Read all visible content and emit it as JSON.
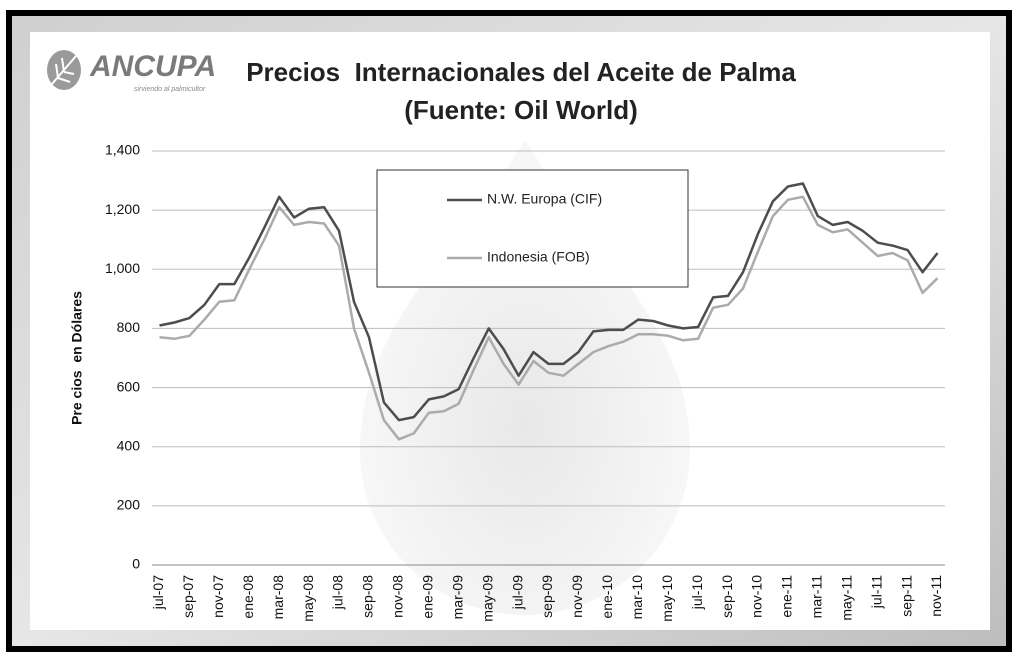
{
  "chart_data": {
    "type": "line",
    "brand": "ANCUPA",
    "brand_tagline": "sirviendo al palmicultor",
    "title": "Precios  Internacionales del Aceite de Palma",
    "subtitle": "(Fuente: Oil World)",
    "y_label": "Pre cios  en Dólares",
    "categories": [
      "jul-07",
      null,
      "sep-07",
      null,
      "nov-07",
      null,
      "ene-08",
      null,
      "mar-08",
      null,
      "may-08",
      null,
      "jul-08",
      null,
      "sep-08",
      null,
      "nov-08",
      null,
      "ene-09",
      null,
      "mar-09",
      null,
      "may-09",
      null,
      "jul-09",
      null,
      "sep-09",
      null,
      "nov-09",
      null,
      "ene-10",
      null,
      "mar-10",
      null,
      "may-10",
      null,
      "jul-10",
      null,
      "sep-10",
      null,
      "nov-10",
      null,
      "ene-11",
      null,
      "mar-11",
      null,
      "may-11",
      null,
      "jul-11",
      null,
      "sep-11",
      null,
      "nov-11"
    ],
    "series": [
      {
        "name": "N.W. Europa (CIF)",
        "color": "#4d4d4d",
        "values": [
          810,
          820,
          835,
          880,
          950,
          950,
          1040,
          1140,
          1245,
          1175,
          1205,
          1210,
          1130,
          890,
          770,
          550,
          490,
          500,
          560,
          570,
          595,
          700,
          800,
          730,
          640,
          720,
          680,
          680,
          720,
          790,
          795,
          795,
          830,
          825,
          810,
          800,
          805,
          905,
          910,
          990,
          1120,
          1230,
          1280,
          1290,
          1180,
          1150,
          1160,
          1130,
          1090,
          1080,
          1065,
          990,
          1055
        ]
      },
      {
        "name": "Indonesia (FOB)",
        "color": "#ababab",
        "values": [
          770,
          765,
          775,
          830,
          890,
          895,
          1000,
          1100,
          1210,
          1150,
          1160,
          1155,
          1080,
          800,
          650,
          490,
          425,
          445,
          515,
          520,
          545,
          660,
          770,
          680,
          610,
          690,
          650,
          640,
          680,
          720,
          740,
          755,
          780,
          780,
          775,
          760,
          765,
          870,
          880,
          935,
          1060,
          1180,
          1235,
          1245,
          1150,
          1125,
          1135,
          1090,
          1045,
          1055,
          1030,
          920,
          970
        ]
      }
    ],
    "ylim": [
      0,
      1400
    ],
    "yticks": [
      0,
      200,
      400,
      600,
      800,
      {
        "value": 1000,
        "label": "1,000"
      },
      {
        "value": 1200,
        "label": "1,200"
      },
      {
        "value": 1400,
        "label": "1,400"
      }
    ],
    "grid": true,
    "legend": "top"
  }
}
